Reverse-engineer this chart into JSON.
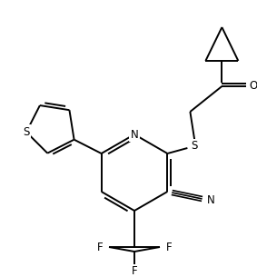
{
  "background_color": "#ffffff",
  "line_color": "#000000",
  "figsize": [
    2.83,
    3.05
  ],
  "dpi": 100,
  "lw": 1.4,
  "N_label": "N",
  "S_label": "S",
  "Sth_label": "S",
  "N2_label": "N",
  "O_label": "O",
  "F_labels": [
    "F",
    "F",
    "F"
  ],
  "fontsize": 8.5
}
